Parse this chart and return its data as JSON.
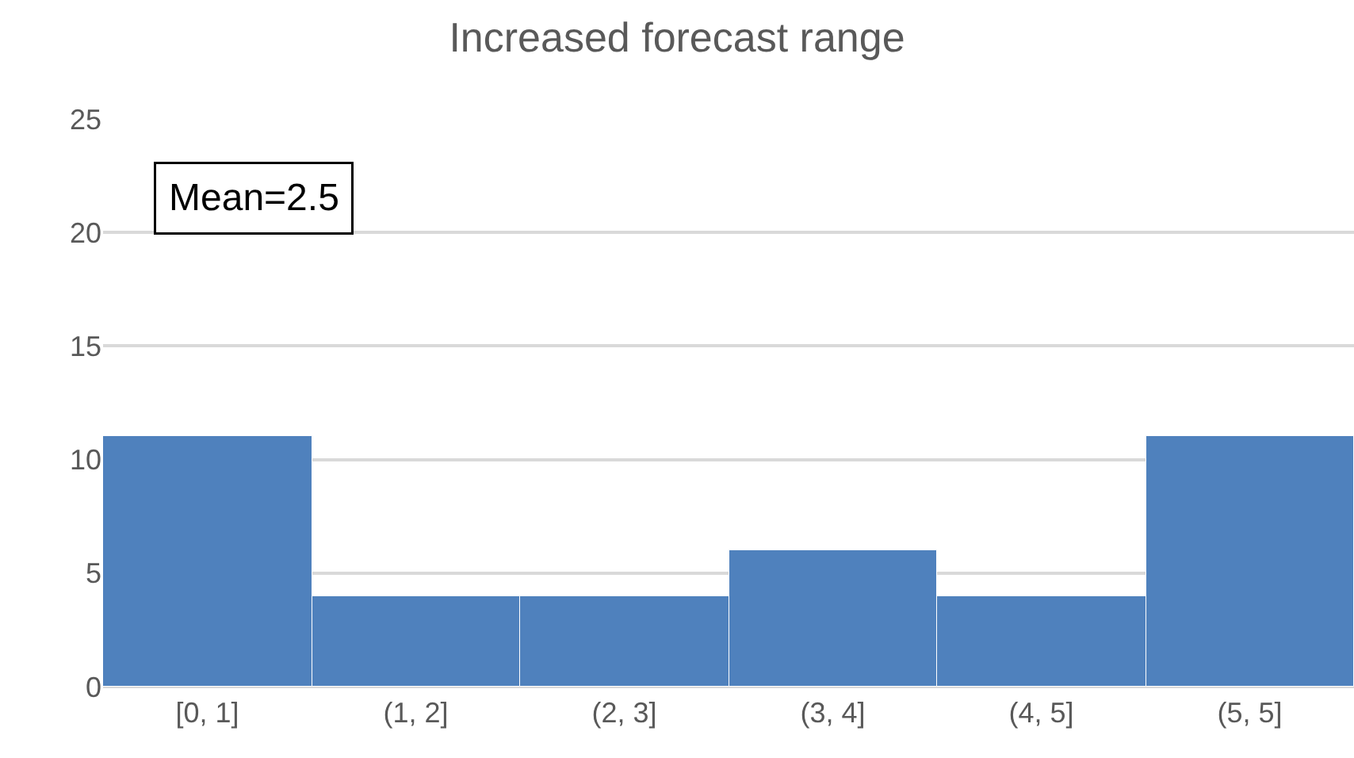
{
  "chart_data": {
    "type": "bar",
    "title": "Increased forecast range",
    "categories": [
      "[0, 1]",
      "(1, 2]",
      "(2, 3]",
      "(3, 4]",
      "(4, 5]",
      "(5, 5]"
    ],
    "values": [
      11,
      4,
      4,
      6,
      4,
      11
    ],
    "color": "#4f81bd",
    "ylim": [
      0,
      25
    ],
    "yticks": [
      0,
      5,
      10,
      15,
      20,
      25
    ],
    "grid": "y",
    "annotations": [
      "Mean=2.5"
    ]
  }
}
